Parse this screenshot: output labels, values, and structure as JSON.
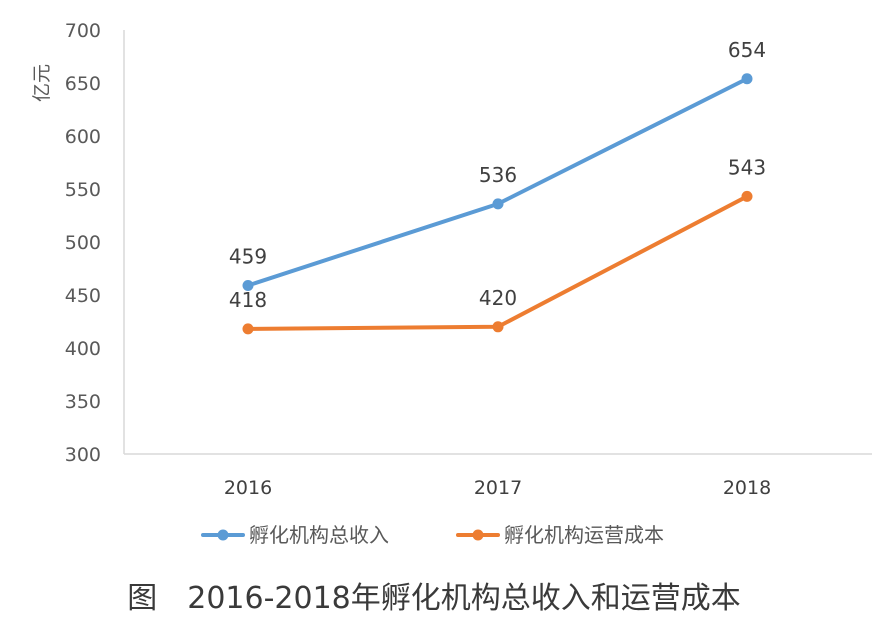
{
  "chart_data": {
    "type": "line",
    "categories": [
      "2016",
      "2017",
      "2018"
    ],
    "series": [
      {
        "name": "孵化机构总收入",
        "values": [
          459,
          536,
          654
        ],
        "color": "#5b9bd5"
      },
      {
        "name": "孵化机构运营成本",
        "values": [
          418,
          420,
          543
        ],
        "color": "#ed7d31"
      }
    ],
    "ylabel": "亿元",
    "xlabel": "",
    "ylim": [
      300,
      700
    ],
    "yticks": [
      300,
      350,
      400,
      450,
      500,
      550,
      600,
      650,
      700
    ],
    "grid": false,
    "legend": "bottom"
  },
  "caption": "图　2016-2018年孵化机构总收入和运营成本"
}
